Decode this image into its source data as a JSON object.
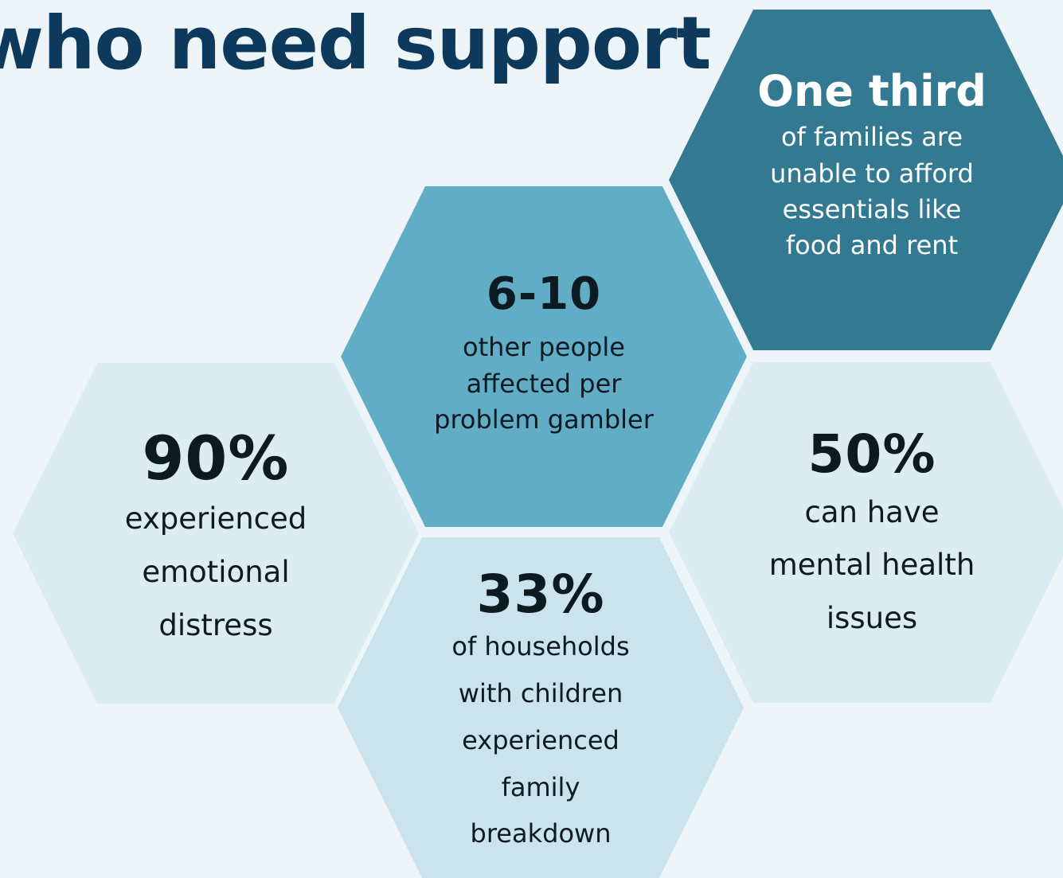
{
  "heading": "who need support",
  "colors": {
    "background": "#eef5f9",
    "heading": "#0d3a5c",
    "hex_dark": "#347992",
    "hex_mid": "#62adc6",
    "hex_light": "#dcecf3",
    "hex_light2": "#cae3ec"
  },
  "stats": {
    "one_third": {
      "figure": "One third",
      "lines": [
        "of families are",
        "unable to afford",
        "essentials like",
        "food and rent"
      ]
    },
    "six_ten": {
      "figure": "6-10",
      "lines": [
        "other people",
        "affected per",
        "problem gambler"
      ]
    },
    "ninety": {
      "figure": "90%",
      "lines": [
        "experienced",
        "emotional",
        "distress"
      ]
    },
    "fifty": {
      "figure": "50%",
      "lines": [
        "can have",
        "mental health",
        "issues"
      ]
    },
    "thirty_three": {
      "figure": "33%",
      "lines": [
        "of households",
        "with children",
        "experienced",
        "family",
        "breakdown"
      ]
    }
  }
}
